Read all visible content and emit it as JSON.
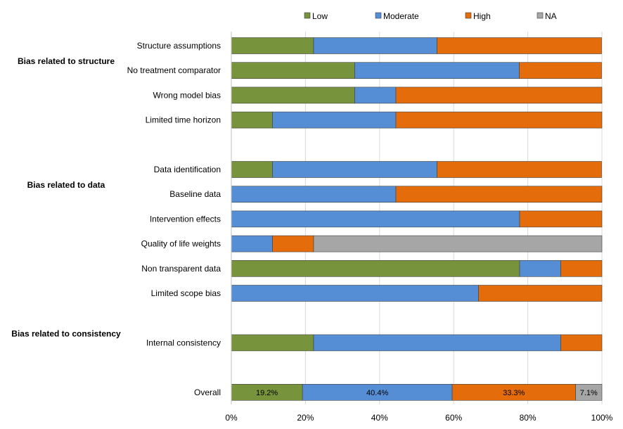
{
  "chart_data": {
    "type": "bar",
    "orientation": "horizontal",
    "stacked": "percent",
    "legend_position": "top",
    "grid": true,
    "xlim": [
      0,
      100
    ],
    "x_ticks": [
      "0%",
      "20%",
      "40%",
      "60%",
      "80%",
      "100%"
    ],
    "series": [
      {
        "name": "Low",
        "color": "#77933c"
      },
      {
        "name": "Moderate",
        "color": "#558ed5"
      },
      {
        "name": "High",
        "color": "#e46c0a"
      },
      {
        "name": "NA",
        "color": "#a6a6a6"
      }
    ],
    "groups": [
      {
        "label": "Bias  related to structure",
        "row": 1
      },
      {
        "label": "Bias  related to data",
        "row": 6
      },
      {
        "label": "Bias  related to consistency",
        "row": 12
      }
    ],
    "rows": [
      {
        "label": "Structure assumptions",
        "row": 0,
        "values": [
          22.2,
          33.3,
          44.4,
          0
        ]
      },
      {
        "label": "No treatment comparator",
        "row": 1,
        "values": [
          33.3,
          44.4,
          22.2,
          0
        ]
      },
      {
        "label": "Wrong model bias",
        "row": 2,
        "values": [
          33.3,
          11.1,
          55.6,
          0
        ]
      },
      {
        "label": "Limited time horizon",
        "row": 3,
        "values": [
          11.1,
          33.3,
          55.6,
          0
        ]
      },
      {
        "label": "Data identification",
        "row": 5,
        "values": [
          11.1,
          44.4,
          44.4,
          0
        ]
      },
      {
        "label": "Baseline data",
        "row": 6,
        "values": [
          0,
          44.4,
          55.6,
          0
        ]
      },
      {
        "label": "Intervention effects",
        "row": 7,
        "values": [
          0,
          77.8,
          22.2,
          0
        ]
      },
      {
        "label": "Quality of life weights",
        "row": 8,
        "values": [
          0,
          11.1,
          11.1,
          77.8
        ]
      },
      {
        "label": "Non transparent data",
        "row": 9,
        "values": [
          77.8,
          11.1,
          11.1,
          0
        ]
      },
      {
        "label": "Limited scope bias",
        "row": 10,
        "values": [
          0,
          66.7,
          33.3,
          0
        ]
      },
      {
        "label": "Internal consistency",
        "row": 12,
        "values": [
          22.2,
          66.7,
          11.1,
          0
        ]
      },
      {
        "label": "Overall",
        "row": 14,
        "values": [
          19.2,
          40.4,
          33.3,
          7.1
        ],
        "data_labels": [
          "19.2%",
          "40.4%",
          "33.3%",
          "7.1%"
        ]
      }
    ]
  }
}
